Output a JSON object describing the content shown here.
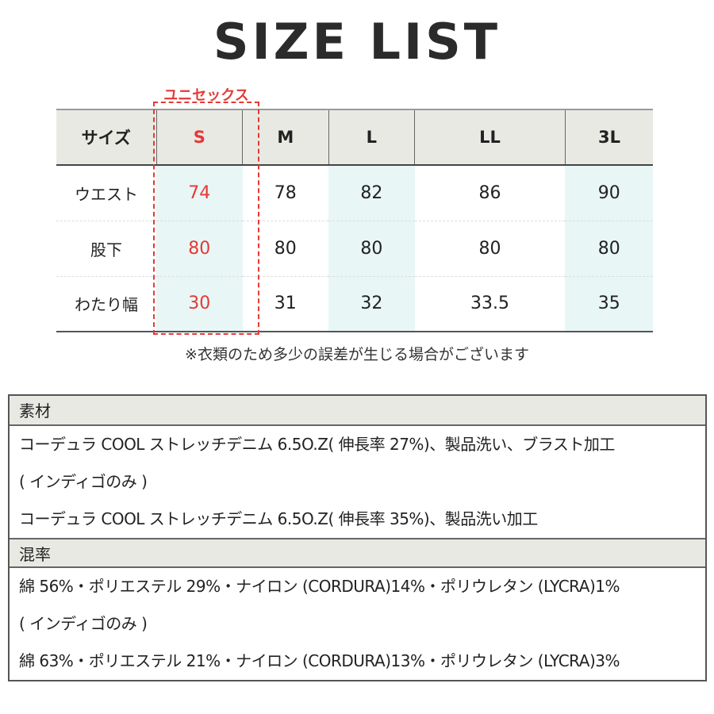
{
  "title": "SIZE LIST",
  "unisex_label": "ユニセックス",
  "table": {
    "headers": [
      "サイズ",
      "S",
      "M",
      "L",
      "LL",
      "3L"
    ],
    "rows": [
      {
        "label": "ウエスト",
        "values": [
          "74",
          "78",
          "82",
          "86",
          "90"
        ]
      },
      {
        "label": "股下",
        "values": [
          "80",
          "80",
          "80",
          "80",
          "80"
        ]
      },
      {
        "label": "わたり幅",
        "values": [
          "30",
          "31",
          "32",
          "33.5",
          "35"
        ]
      }
    ]
  },
  "note": "※衣類のため多少の誤差が生じる場合がございます",
  "material": {
    "heading": "素材",
    "lines": [
      "コーデュラ COOL ストレッチデニム 6.5O.Z( 伸長率 27%)、製品洗い、ブラスト加工",
      "( インディゴのみ )",
      "コーデュラ COOL ストレッチデニム 6.5O.Z( 伸長率 35%)、製品洗い加工"
    ]
  },
  "blend": {
    "heading": "混率",
    "lines": [
      "綿 56%・ポリエステル 29%・ナイロン (CORDURA)14%・ポリウレタン (LYCRA)1%",
      "( インディゴのみ )",
      "綿 63%・ポリエステル 21%・ナイロン (CORDURA)13%・ポリウレタン (LYCRA)3%"
    ]
  },
  "colors": {
    "accent": "#e53935",
    "header_bg": "#e9e9e4",
    "shade": "#e8f6f6"
  }
}
